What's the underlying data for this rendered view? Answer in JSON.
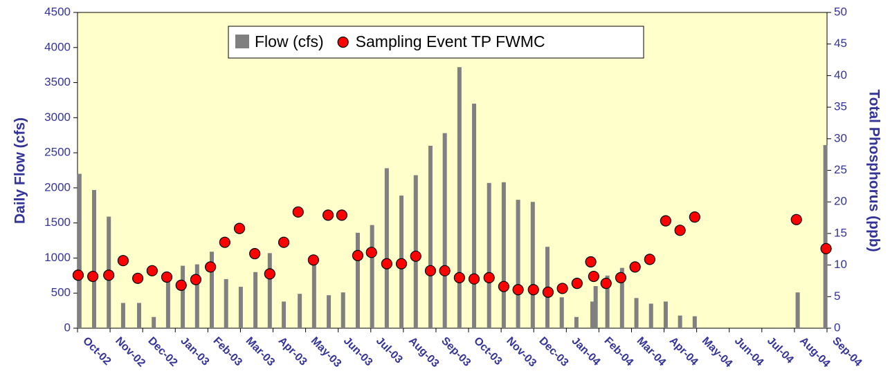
{
  "chart_data": {
    "type": "combo",
    "y_label": "Daily Flow (cfs)",
    "y2_label": "Total Phosphorus (ppb)",
    "xlim": [
      0,
      23
    ],
    "xticks": [
      {
        "value": 0,
        "label": "Oct-02"
      },
      {
        "value": 1,
        "label": "Nov-02"
      },
      {
        "value": 2,
        "label": "Dec-02"
      },
      {
        "value": 3,
        "label": "Jan-03"
      },
      {
        "value": 4,
        "label": "Feb-03"
      },
      {
        "value": 5,
        "label": "Mar-03"
      },
      {
        "value": 6,
        "label": "Apr-03"
      },
      {
        "value": 7,
        "label": "May-03"
      },
      {
        "value": 8,
        "label": "Jun-03"
      },
      {
        "value": 9,
        "label": "Jul-03"
      },
      {
        "value": 10,
        "label": "Aug-03"
      },
      {
        "value": 11,
        "label": "Sep-03"
      },
      {
        "value": 12,
        "label": "Oct-03"
      },
      {
        "value": 13,
        "label": "Nov-03"
      },
      {
        "value": 14,
        "label": "Dec-03"
      },
      {
        "value": 15,
        "label": "Jan-04"
      },
      {
        "value": 16,
        "label": "Feb-04"
      },
      {
        "value": 17,
        "label": "Mar-04"
      },
      {
        "value": 18,
        "label": "Apr-04"
      },
      {
        "value": 19,
        "label": "May-04"
      },
      {
        "value": 20,
        "label": "Jun-04"
      },
      {
        "value": 21,
        "label": "Jul-04"
      },
      {
        "value": 22,
        "label": "Aug-04"
      },
      {
        "value": 23,
        "label": "Sep-04"
      }
    ],
    "ylim": [
      0,
      4500
    ],
    "yticks": [
      0,
      500,
      1000,
      1500,
      2000,
      2500,
      3000,
      3500,
      4000,
      4500
    ],
    "y2lim": [
      0,
      50
    ],
    "y2ticks": [
      0,
      5,
      10,
      15,
      20,
      25,
      30,
      35,
      40,
      45,
      50
    ],
    "background": "#ffffcc",
    "legend": "top",
    "series": [
      {
        "name": "Flow (cfs)",
        "type": "bar",
        "color": "#808080",
        "x": [
          0.06,
          0.51,
          0.96,
          1.4,
          1.89,
          2.34,
          2.78,
          3.23,
          3.67,
          4.12,
          4.56,
          5.01,
          5.46,
          5.9,
          6.33,
          6.82,
          7.26,
          7.71,
          8.15,
          8.6,
          9.04,
          9.49,
          9.94,
          10.38,
          10.83,
          11.27,
          11.72,
          12.17,
          12.63,
          13.08,
          13.52,
          13.97,
          14.42,
          14.86,
          15.31,
          15.8,
          15.9,
          16.26,
          16.71,
          17.15,
          17.6,
          18.05,
          18.49,
          18.94,
          22.1,
          22.95
        ],
        "values": [
          2200,
          1970,
          1590,
          360,
          360,
          160,
          700,
          890,
          910,
          1090,
          700,
          590,
          800,
          1070,
          380,
          490,
          1000,
          470,
          510,
          1360,
          1470,
          2280,
          1890,
          2180,
          2600,
          2780,
          3720,
          3200,
          2070,
          2080,
          1830,
          1800,
          1160,
          440,
          160,
          380,
          600,
          750,
          860,
          430,
          350,
          380,
          180,
          170,
          510,
          2610
        ]
      },
      {
        "name": "Sampling Event TP FWMC",
        "type": "scatter",
        "axis": "y2",
        "color": "#ff0000",
        "x": [
          0.02,
          0.47,
          0.96,
          1.4,
          1.85,
          2.29,
          2.74,
          3.18,
          3.63,
          4.08,
          4.52,
          4.97,
          5.44,
          5.9,
          6.33,
          6.77,
          7.24,
          7.69,
          8.11,
          8.6,
          9.02,
          9.49,
          9.94,
          10.38,
          10.83,
          11.27,
          11.72,
          12.17,
          12.63,
          13.08,
          13.52,
          13.99,
          14.44,
          14.88,
          15.33,
          15.75,
          15.84,
          16.22,
          16.67,
          17.11,
          17.56,
          18.05,
          18.49,
          18.94,
          22.06,
          22.97
        ],
        "values": [
          8.4,
          8.2,
          8.4,
          10.7,
          7.9,
          9.1,
          8.1,
          6.8,
          7.7,
          9.7,
          13.6,
          15.8,
          11.8,
          8.6,
          13.6,
          18.4,
          10.8,
          17.9,
          17.9,
          11.5,
          12.0,
          10.2,
          10.2,
          11.4,
          9.1,
          9.1,
          8.0,
          7.8,
          8.0,
          6.6,
          6.1,
          6.1,
          5.7,
          6.3,
          7.1,
          10.5,
          8.2,
          7.1,
          8.0,
          9.7,
          10.9,
          17.0,
          15.5,
          17.6,
          17.2,
          12.6
        ]
      }
    ]
  }
}
